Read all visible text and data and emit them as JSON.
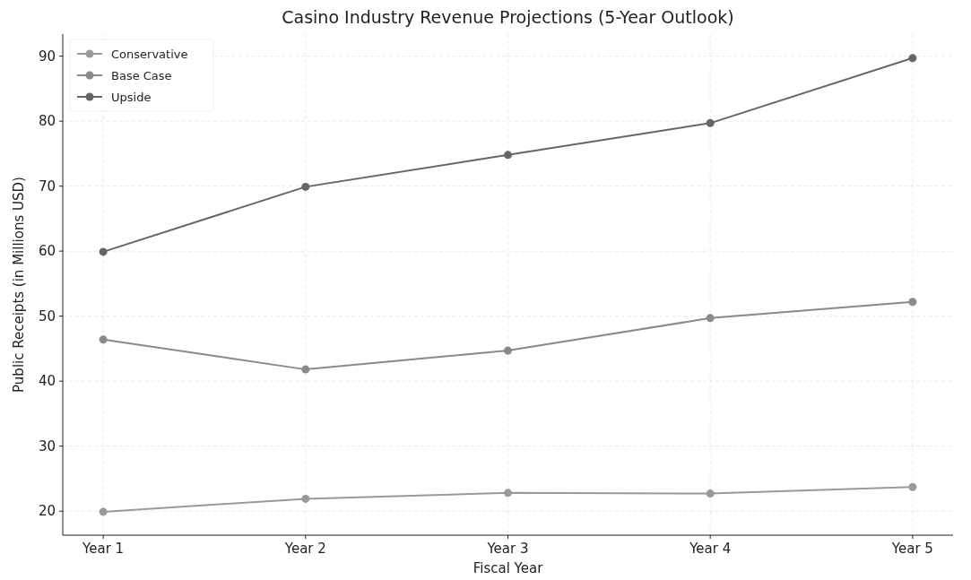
{
  "chart_data": {
    "type": "line",
    "title": "Casino Industry Revenue Projections (5-Year Outlook)",
    "xlabel": "Fiscal Year",
    "ylabel": "Public Receipts (in Millions USD)",
    "categories": [
      "Year 1",
      "Year 2",
      "Year 3",
      "Year 4",
      "Year 5"
    ],
    "series": [
      {
        "name": "Conservative",
        "color": "#9a9a9a",
        "values": [
          19.9,
          21.9,
          22.8,
          22.7,
          23.7
        ]
      },
      {
        "name": "Base Case",
        "color": "#8a8a8a",
        "values": [
          46.4,
          41.8,
          44.7,
          49.7,
          52.2
        ]
      },
      {
        "name": "Upside",
        "color": "#666666",
        "values": [
          59.9,
          69.9,
          74.8,
          79.7,
          89.7
        ]
      }
    ],
    "ylim": [
      16.3,
      93.4
    ],
    "yticks": [
      20,
      30,
      40,
      50,
      60,
      70,
      80,
      90
    ],
    "grid": true,
    "legend": "top left",
    "marker": "circle",
    "line_style": "solid"
  }
}
